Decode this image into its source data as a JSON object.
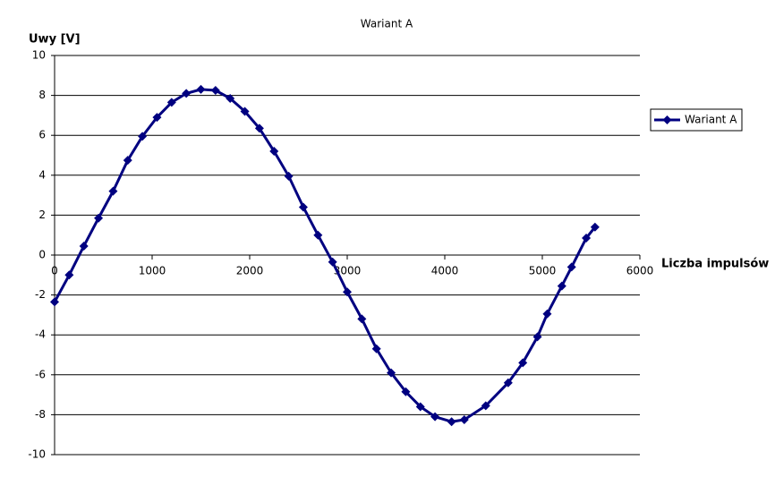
{
  "chart_data": {
    "type": "line",
    "title": "Wariant A",
    "y_label": "Uwy [V]",
    "x_label": "Liczba impulsów",
    "x": [
      0,
      150,
      300,
      450,
      600,
      750,
      900,
      1050,
      1200,
      1350,
      1500,
      1650,
      1800,
      1950,
      2100,
      2250,
      2400,
      2550,
      2700,
      2850,
      3000,
      3150,
      3300,
      3450,
      3600,
      3750,
      3900,
      4070,
      4200,
      4420,
      4650,
      4800,
      4950,
      5050,
      5200,
      5300,
      5450,
      5540
    ],
    "series": [
      {
        "name": "Wariant A",
        "color": "#000080",
        "values": [
          -2.35,
          -1.0,
          0.45,
          1.85,
          3.2,
          4.75,
          5.95,
          6.9,
          7.65,
          8.1,
          8.3,
          8.25,
          7.85,
          7.2,
          6.35,
          5.2,
          3.95,
          2.4,
          1.0,
          -0.35,
          -1.85,
          -3.2,
          -4.7,
          -5.9,
          -6.85,
          -7.6,
          -8.1,
          -8.35,
          -8.25,
          -7.55,
          -6.4,
          -5.4,
          -4.1,
          -2.95,
          -1.55,
          -0.6,
          0.85,
          1.4
        ]
      }
    ],
    "xlim": [
      0,
      6000
    ],
    "xticks": [
      0,
      1000,
      2000,
      3000,
      4000,
      5000,
      6000
    ],
    "ylim": [
      -10,
      10
    ],
    "yticks": [
      -10,
      -8,
      -6,
      -4,
      -2,
      0,
      2,
      4,
      6,
      8,
      10
    ],
    "grid": true,
    "legend": "right"
  }
}
